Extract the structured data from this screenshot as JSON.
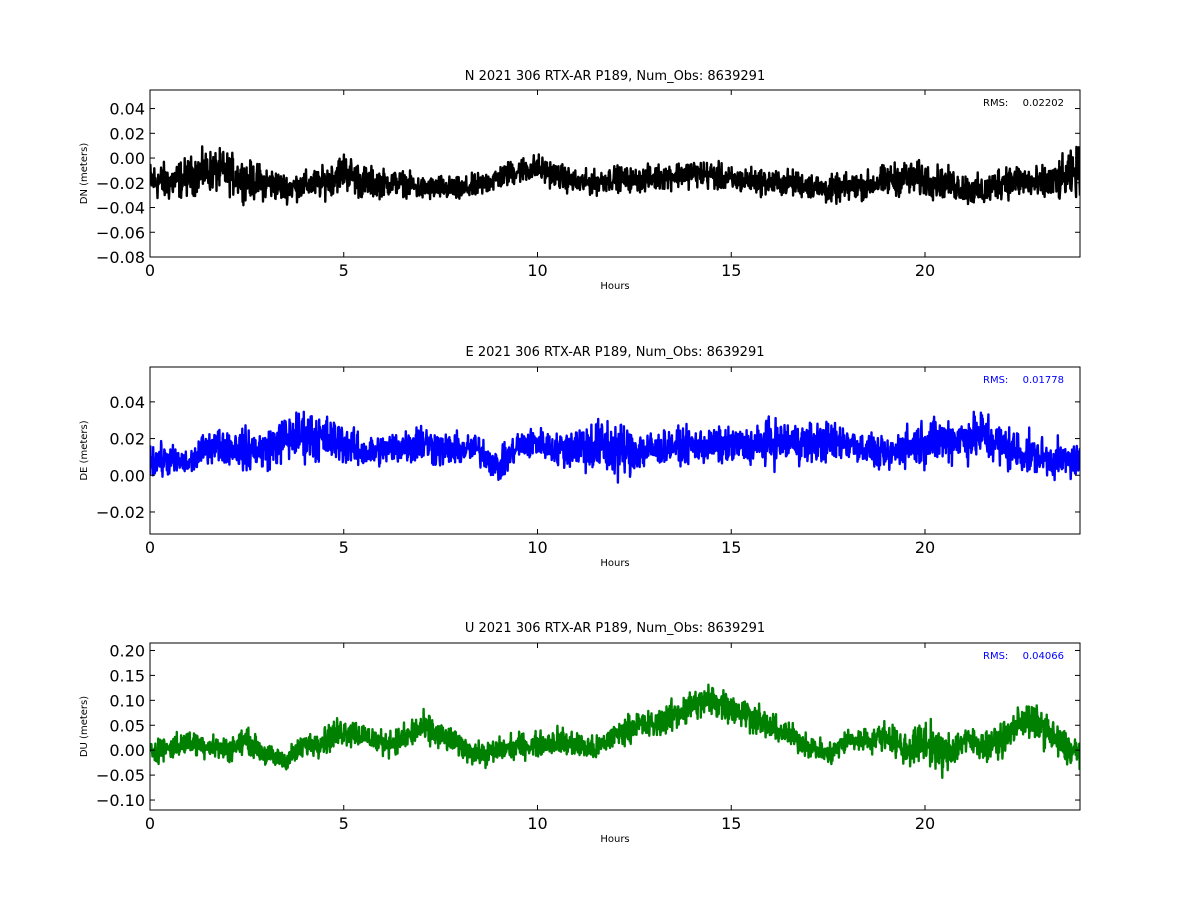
{
  "chart_data": [
    {
      "type": "line",
      "title": "N 2021 306 RTX-AR  P189, Num_Obs: 8639291",
      "xlabel": "Hours",
      "ylabel": "DN (meters)",
      "xlim": [
        0,
        24
      ],
      "ylim": [
        -0.08,
        0.055
      ],
      "xticks": [
        0,
        5,
        10,
        15,
        20
      ],
      "xtick_labels": [
        "0",
        "5",
        "10",
        "15",
        "20"
      ],
      "yticks": [
        -0.08,
        -0.06,
        -0.04,
        -0.02,
        0.0,
        0.02,
        0.04
      ],
      "ytick_labels": [
        "−0.08",
        "−0.06",
        "−0.04",
        "−0.02",
        "0.00",
        "0.02",
        "0.04"
      ],
      "grid": false,
      "annotation": {
        "label": "RMS:",
        "value": "0.02202"
      },
      "color": "#000000",
      "series_color": "#000000",
      "trend": {
        "x": [
          0,
          0.5,
          1,
          1.5,
          2,
          2.5,
          3,
          3.5,
          4,
          4.5,
          5,
          5.5,
          6,
          6.5,
          7,
          7.5,
          8,
          8.5,
          9,
          9.5,
          10,
          10.5,
          11,
          11.5,
          12,
          12.5,
          13,
          13.5,
          14,
          14.5,
          15,
          15.5,
          16,
          16.5,
          17,
          17.5,
          18,
          18.5,
          19,
          19.5,
          20,
          20.5,
          21,
          21.5,
          22,
          22.5,
          23,
          23.5,
          24
        ],
        "y": [
          -0.018,
          -0.02,
          -0.015,
          -0.01,
          -0.012,
          -0.018,
          -0.02,
          -0.024,
          -0.022,
          -0.02,
          -0.01,
          -0.02,
          -0.02,
          -0.02,
          -0.025,
          -0.024,
          -0.026,
          -0.022,
          -0.016,
          -0.01,
          -0.008,
          -0.014,
          -0.02,
          -0.02,
          -0.016,
          -0.018,
          -0.016,
          -0.014,
          -0.012,
          -0.014,
          -0.018,
          -0.018,
          -0.02,
          -0.02,
          -0.022,
          -0.026,
          -0.024,
          -0.022,
          -0.018,
          -0.016,
          -0.018,
          -0.02,
          -0.024,
          -0.028,
          -0.018,
          -0.018,
          -0.022,
          -0.018,
          -0.01
        ],
        "spread": [
          0.022,
          0.022,
          0.022,
          0.024,
          0.024,
          0.022,
          0.02,
          0.016,
          0.016,
          0.018,
          0.022,
          0.02,
          0.016,
          0.014,
          0.014,
          0.014,
          0.014,
          0.014,
          0.014,
          0.015,
          0.016,
          0.015,
          0.014,
          0.014,
          0.014,
          0.014,
          0.015,
          0.015,
          0.016,
          0.016,
          0.015,
          0.015,
          0.015,
          0.015,
          0.015,
          0.016,
          0.016,
          0.016,
          0.018,
          0.02,
          0.02,
          0.018,
          0.018,
          0.018,
          0.02,
          0.02,
          0.02,
          0.024,
          0.028
        ]
      }
    },
    {
      "type": "line",
      "title": "E 2021 306 RTX-AR  P189, Num_Obs: 8639291",
      "xlabel": "Hours",
      "ylabel": "DE (meters)",
      "xlim": [
        0,
        24
      ],
      "ylim": [
        -0.032,
        0.059
      ],
      "xticks": [
        0,
        5,
        10,
        15,
        20
      ],
      "xtick_labels": [
        "0",
        "5",
        "10",
        "15",
        "20"
      ],
      "yticks": [
        -0.02,
        0.0,
        0.02,
        0.04
      ],
      "ytick_labels": [
        "−0.02",
        "0.00",
        "0.02",
        "0.04"
      ],
      "grid": false,
      "annotation": {
        "label": "RMS:",
        "value": "0.01778"
      },
      "color": "#0000ff",
      "series_color": "#0000ff",
      "trend": {
        "x": [
          0,
          0.5,
          1,
          1.5,
          2,
          2.5,
          3,
          3.5,
          4,
          4.5,
          5,
          5.5,
          6,
          6.5,
          7,
          7.5,
          8,
          8.5,
          9,
          9.5,
          10,
          10.5,
          11,
          11.5,
          12,
          12.5,
          13,
          13.5,
          14,
          14.5,
          15,
          15.5,
          16,
          16.5,
          17,
          17.5,
          18,
          18.5,
          19,
          19.5,
          20,
          20.5,
          21,
          21.5,
          22,
          22.5,
          23,
          23.5,
          24
        ],
        "y": [
          0.008,
          0.008,
          0.006,
          0.016,
          0.016,
          0.014,
          0.014,
          0.02,
          0.022,
          0.02,
          0.018,
          0.012,
          0.014,
          0.016,
          0.018,
          0.014,
          0.014,
          0.014,
          0.004,
          0.016,
          0.018,
          0.014,
          0.016,
          0.016,
          0.014,
          0.014,
          0.014,
          0.016,
          0.016,
          0.016,
          0.016,
          0.016,
          0.018,
          0.018,
          0.018,
          0.018,
          0.018,
          0.014,
          0.01,
          0.016,
          0.018,
          0.02,
          0.02,
          0.022,
          0.016,
          0.012,
          0.01,
          0.008,
          0.008
        ],
        "spread": [
          0.014,
          0.012,
          0.01,
          0.012,
          0.014,
          0.016,
          0.016,
          0.018,
          0.02,
          0.018,
          0.016,
          0.012,
          0.012,
          0.014,
          0.016,
          0.014,
          0.012,
          0.012,
          0.012,
          0.012,
          0.012,
          0.012,
          0.018,
          0.022,
          0.024,
          0.018,
          0.014,
          0.012,
          0.014,
          0.014,
          0.014,
          0.014,
          0.018,
          0.016,
          0.016,
          0.016,
          0.014,
          0.012,
          0.012,
          0.016,
          0.018,
          0.018,
          0.018,
          0.02,
          0.018,
          0.016,
          0.014,
          0.014,
          0.014
        ]
      }
    },
    {
      "type": "line",
      "title": "U 2021 306 RTX-AR  P189, Num_Obs: 8639291",
      "xlabel": "Hours",
      "ylabel": "DU (meters)",
      "xlim": [
        0,
        24
      ],
      "ylim": [
        -0.12,
        0.215
      ],
      "xticks": [
        0,
        5,
        10,
        15,
        20
      ],
      "xtick_labels": [
        "0",
        "5",
        "10",
        "15",
        "20"
      ],
      "yticks": [
        -0.1,
        -0.05,
        0.0,
        0.05,
        0.1,
        0.15,
        0.2
      ],
      "ytick_labels": [
        "−0.10",
        "−0.05",
        "0.00",
        "0.05",
        "0.10",
        "0.15",
        "0.20"
      ],
      "grid": false,
      "annotation": {
        "label": "RMS:",
        "value": "0.04066"
      },
      "color": "#0000ff",
      "series_color": "#008000",
      "trend": {
        "x": [
          0,
          0.5,
          1,
          1.5,
          2,
          2.5,
          3,
          3.5,
          4,
          4.5,
          5,
          5.5,
          6,
          6.5,
          7,
          7.5,
          8,
          8.5,
          9,
          9.5,
          10,
          10.5,
          11,
          11.5,
          12,
          12.5,
          13,
          13.5,
          14,
          14.5,
          15,
          15.5,
          16,
          16.5,
          17,
          17.5,
          18,
          18.5,
          19,
          19.5,
          20,
          20.5,
          21,
          21.5,
          22,
          22.5,
          23,
          23.5,
          24
        ],
        "y": [
          0.0,
          0.005,
          0.015,
          0.01,
          0.0,
          0.02,
          -0.01,
          -0.02,
          0.01,
          0.02,
          0.04,
          0.03,
          0.015,
          0.02,
          0.045,
          0.03,
          0.01,
          -0.01,
          0.0,
          0.01,
          0.01,
          0.02,
          0.01,
          0.0,
          0.03,
          0.05,
          0.05,
          0.07,
          0.09,
          0.1,
          0.085,
          0.07,
          0.045,
          0.03,
          0.01,
          -0.01,
          0.02,
          0.02,
          0.03,
          0.0,
          0.02,
          -0.01,
          0.02,
          0.01,
          0.02,
          0.06,
          0.05,
          0.01,
          -0.01
        ],
        "spread": [
          0.035,
          0.035,
          0.035,
          0.035,
          0.035,
          0.035,
          0.03,
          0.03,
          0.035,
          0.04,
          0.045,
          0.04,
          0.035,
          0.04,
          0.045,
          0.04,
          0.035,
          0.035,
          0.035,
          0.035,
          0.035,
          0.04,
          0.04,
          0.035,
          0.035,
          0.04,
          0.04,
          0.045,
          0.05,
          0.05,
          0.045,
          0.045,
          0.04,
          0.035,
          0.035,
          0.035,
          0.035,
          0.035,
          0.04,
          0.05,
          0.06,
          0.06,
          0.045,
          0.04,
          0.045,
          0.05,
          0.05,
          0.05,
          0.05
        ]
      }
    }
  ]
}
